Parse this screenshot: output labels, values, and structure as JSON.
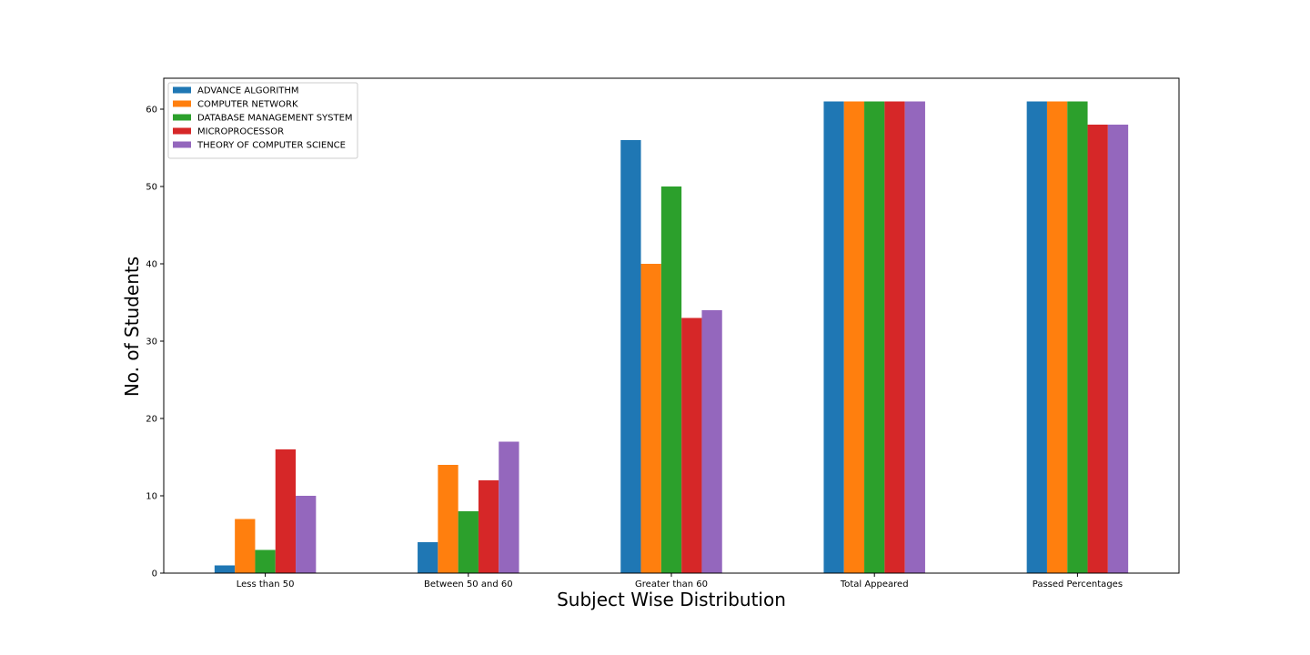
{
  "chart_data": {
    "type": "bar",
    "title": "",
    "xlabel": "Subject Wise Distribution",
    "ylabel": "No. of Students",
    "categories": [
      "Less than 50",
      "Between 50 and 60",
      "Greater than 60",
      "Total Appeared",
      "Passed Percentages"
    ],
    "ylim": [
      0,
      64
    ],
    "yticks": [
      0,
      10,
      20,
      30,
      40,
      50,
      60
    ],
    "grid": false,
    "legend_position": "top-left",
    "series": [
      {
        "name": "ADVANCE ALGORITHM",
        "color": "#1f77b4",
        "values": [
          1,
          4,
          56,
          61,
          61
        ]
      },
      {
        "name": "COMPUTER NETWORK",
        "color": "#ff7f0e",
        "values": [
          7,
          14,
          40,
          61,
          61
        ]
      },
      {
        "name": "DATABASE MANAGEMENT SYSTEM",
        "color": "#2ca02c",
        "values": [
          3,
          8,
          50,
          61,
          61
        ]
      },
      {
        "name": "MICROPROCESSOR",
        "color": "#d62728",
        "values": [
          16,
          12,
          33,
          61,
          58
        ]
      },
      {
        "name": "THEORY OF COMPUTER SCIENCE",
        "color": "#9467bd",
        "values": [
          10,
          17,
          34,
          61,
          58
        ]
      }
    ]
  }
}
